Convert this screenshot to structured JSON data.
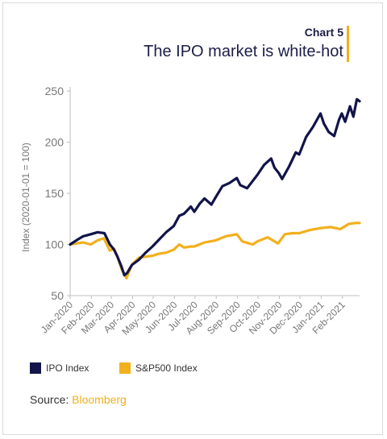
{
  "header": {
    "chart_number": "Chart 5",
    "title": "The IPO market is white-hot"
  },
  "colors": {
    "ipo": "#12144a",
    "sp500": "#f2b01e",
    "title": "#1c1e4a",
    "accent": "#f2b01e"
  },
  "source": {
    "label": "Source:",
    "name": "Bloomberg"
  },
  "chart_data": {
    "type": "line",
    "title": "The IPO market is white-hot",
    "xlabel": "",
    "ylabel": "Index (2020-01-01 = 100)",
    "ylim": [
      50,
      250
    ],
    "yticks": [
      50,
      100,
      150,
      200,
      250
    ],
    "xticklabels": [
      "Jan-2020",
      "Feb-2020",
      "Mar-2020",
      "Apr-2020",
      "May-2020",
      "Jun-2020",
      "Jul-2020",
      "Aug-2020",
      "Sep-2020",
      "Oct-2020",
      "Nov-2020",
      "Dec-2020",
      "Jan-2021",
      "Feb-2021"
    ],
    "grid": false,
    "legend_position": "bottom",
    "series": [
      {
        "name": "IPO Index",
        "color": "#12144a",
        "x": [
          "2020-01-01",
          "2020-01-10",
          "2020-01-20",
          "2020-01-31",
          "2020-02-10",
          "2020-02-20",
          "2020-02-28",
          "2020-03-05",
          "2020-03-10",
          "2020-03-16",
          "2020-03-20",
          "2020-03-24",
          "2020-03-31",
          "2020-04-10",
          "2020-04-20",
          "2020-04-30",
          "2020-05-10",
          "2020-05-20",
          "2020-05-31",
          "2020-06-08",
          "2020-06-15",
          "2020-06-25",
          "2020-06-30",
          "2020-07-08",
          "2020-07-15",
          "2020-07-25",
          "2020-07-31",
          "2020-08-10",
          "2020-08-20",
          "2020-08-31",
          "2020-09-05",
          "2020-09-15",
          "2020-09-23",
          "2020-09-30",
          "2020-10-10",
          "2020-10-20",
          "2020-10-25",
          "2020-10-31",
          "2020-11-05",
          "2020-11-15",
          "2020-11-25",
          "2020-11-30",
          "2020-12-10",
          "2020-12-20",
          "2020-12-31",
          "2021-01-05",
          "2021-01-12",
          "2021-01-20",
          "2021-01-27",
          "2021-01-31",
          "2021-02-05",
          "2021-02-12",
          "2021-02-17",
          "2021-02-22",
          "2021-02-26"
        ],
        "values": [
          100,
          104,
          108,
          110,
          112,
          111,
          100,
          95,
          88,
          78,
          70,
          72,
          80,
          85,
          92,
          98,
          105,
          112,
          118,
          128,
          130,
          137,
          132,
          140,
          145,
          139,
          146,
          157,
          160,
          165,
          158,
          155,
          162,
          168,
          178,
          184,
          175,
          170,
          164,
          176,
          190,
          188,
          205,
          215,
          228,
          218,
          210,
          206,
          222,
          228,
          220,
          235,
          225,
          242,
          240
        ]
      },
      {
        "name": "S&P500 Index",
        "color": "#f2b01e",
        "x": [
          "2020-01-01",
          "2020-01-10",
          "2020-01-20",
          "2020-01-31",
          "2020-02-10",
          "2020-02-19",
          "2020-02-28",
          "2020-03-05",
          "2020-03-10",
          "2020-03-16",
          "2020-03-23",
          "2020-03-31",
          "2020-04-10",
          "2020-04-20",
          "2020-04-30",
          "2020-05-10",
          "2020-05-20",
          "2020-05-31",
          "2020-06-08",
          "2020-06-15",
          "2020-06-25",
          "2020-06-30",
          "2020-07-15",
          "2020-07-31",
          "2020-08-15",
          "2020-08-31",
          "2020-09-08",
          "2020-09-23",
          "2020-09-30",
          "2020-10-15",
          "2020-10-30",
          "2020-11-09",
          "2020-11-20",
          "2020-11-30",
          "2020-12-15",
          "2020-12-31",
          "2021-01-15",
          "2021-01-29",
          "2021-02-10",
          "2021-02-20",
          "2021-02-26"
        ],
        "values": [
          100,
          101,
          102,
          100,
          104,
          106,
          94,
          96,
          88,
          76,
          67,
          80,
          87,
          88,
          89,
          91,
          92,
          95,
          100,
          97,
          98,
          98,
          102,
          104,
          108,
          110,
          103,
          100,
          103,
          107,
          101,
          110,
          111,
          111,
          114,
          116,
          117,
          115,
          120,
          121,
          121
        ]
      }
    ]
  }
}
